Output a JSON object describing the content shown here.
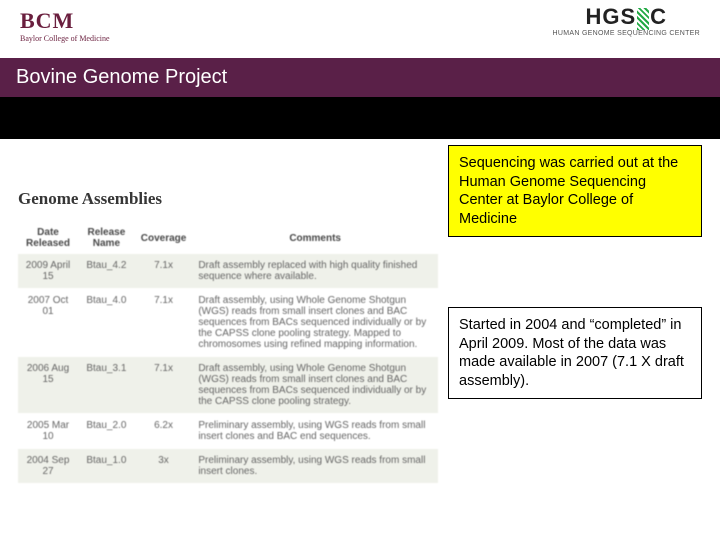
{
  "logos": {
    "bcm": {
      "text": "BCM",
      "subtitle": "Baylor College of Medicine"
    },
    "hgsc": {
      "text_left": "HGS",
      "text_right": "C",
      "subtitle": "HUMAN GENOME SEQUENCING CENTER"
    }
  },
  "title": "Bovine Genome Project",
  "section_title": "Genome Assemblies",
  "table": {
    "headers": [
      "Date Released",
      "Release Name",
      "Coverage",
      "Comments"
    ],
    "rows": [
      {
        "date": "2009 April 15",
        "name": "Btau_4.2",
        "coverage": "7.1x",
        "comment": "Draft assembly replaced with high quality finished sequence where available.",
        "shade": true
      },
      {
        "date": "2007 Oct 01",
        "name": "Btau_4.0",
        "coverage": "7.1x",
        "comment": "Draft assembly, using Whole Genome Shotgun (WGS) reads from small insert clones and BAC sequences from BACs sequenced individually or by the CAPSS clone pooling strategy. Mapped to chromosomes using refined mapping information.",
        "shade": false
      },
      {
        "date": "2006 Aug 15",
        "name": "Btau_3.1",
        "coverage": "7.1x",
        "comment": "Draft assembly, using Whole Genome Shotgun (WGS) reads from small insert clones and BAC sequences from BACs sequenced individually or by the CAPSS clone pooling strategy.",
        "link": "CAPSS",
        "shade": true
      },
      {
        "date": "2005 Mar 10",
        "name": "Btau_2.0",
        "coverage": "6.2x",
        "comment": "Preliminary assembly, using WGS reads from small insert clones and BAC end sequences.",
        "shade": false
      },
      {
        "date": "2004 Sep 27",
        "name": "Btau_1.0",
        "coverage": "3x",
        "comment": "Preliminary assembly, using WGS reads from small insert clones.",
        "shade": true
      }
    ]
  },
  "callout1": "Sequencing was carried out at the Human Genome Sequencing Center at Baylor College of Medicine",
  "callout2": "Started in 2004 and “completed” in April 2009. Most of the data was made available in 2007 (7.1 X draft assembly).",
  "colors": {
    "title_bar": "#5a2048",
    "highlight": "#ffff00",
    "row_shade": "#eef0e8"
  }
}
